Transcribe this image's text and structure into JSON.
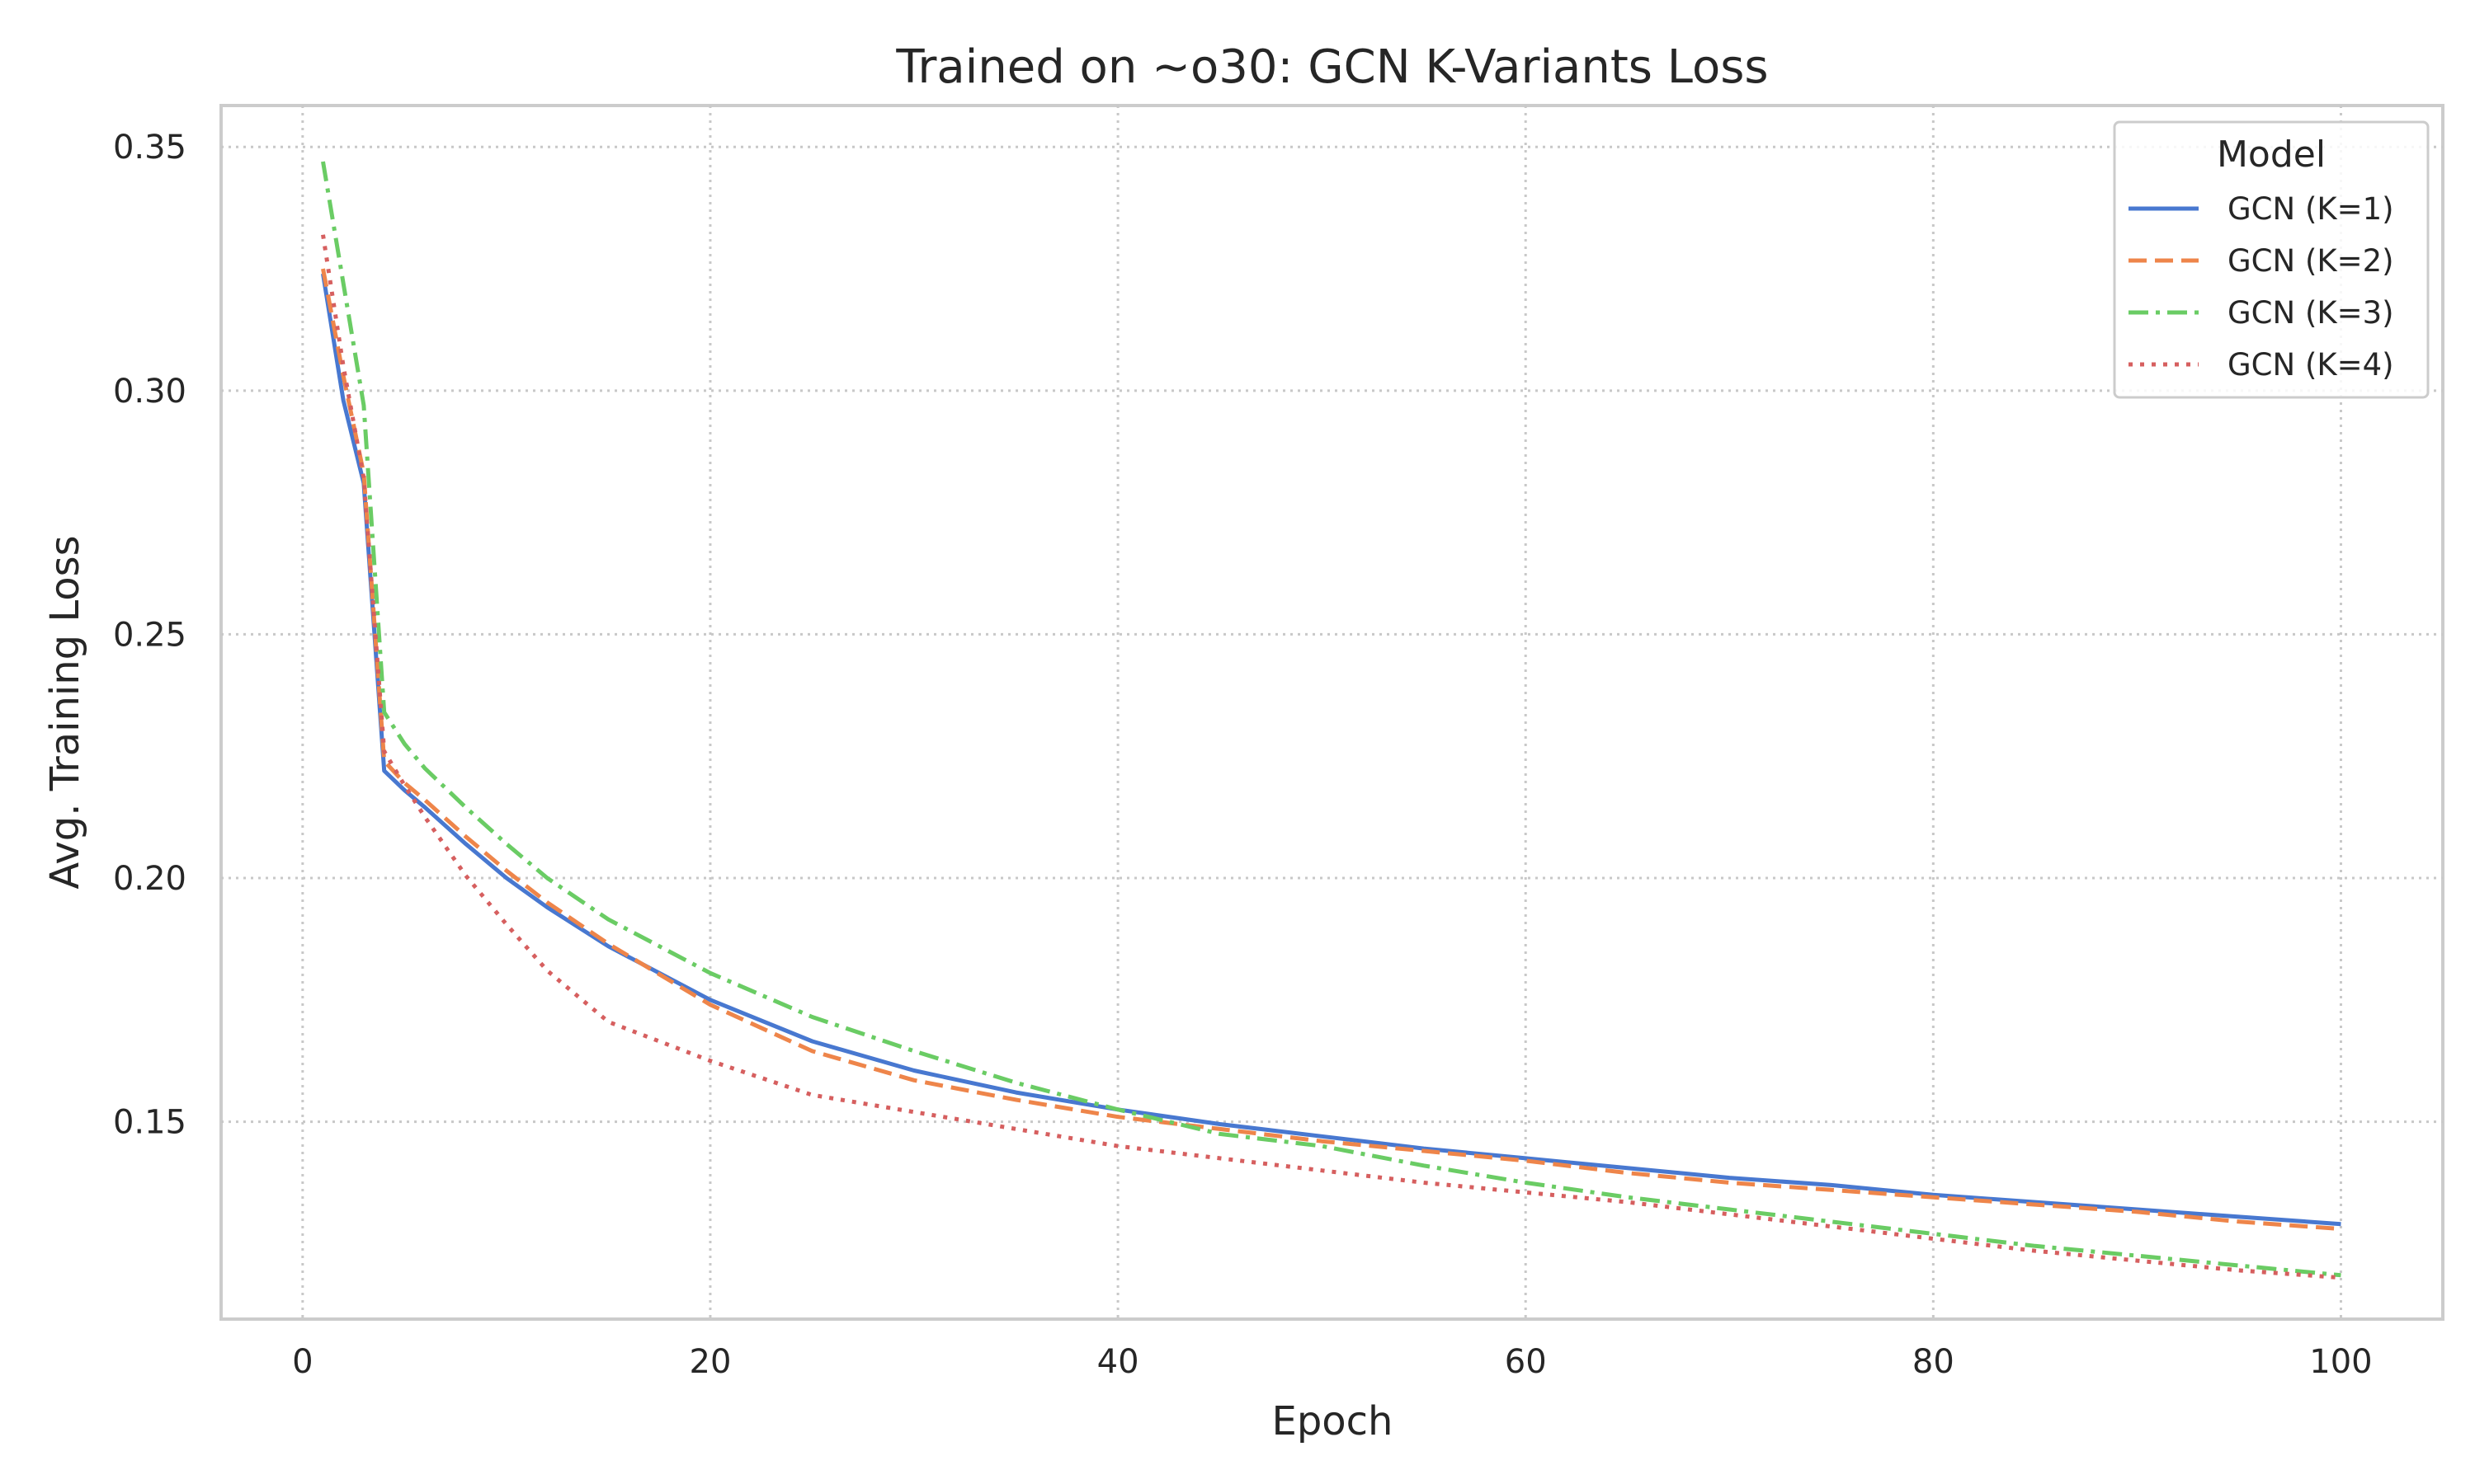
{
  "chart_data": {
    "type": "line",
    "title": "Trained on ~o30: GCN K-Variants Loss",
    "xlabel": "Epoch",
    "ylabel": "Avg. Training Loss",
    "xlim": [
      -4,
      105
    ],
    "ylim": [
      0.1095,
      0.3585
    ],
    "xticks": [
      0,
      20,
      40,
      60,
      80,
      100
    ],
    "xtick_labels": [
      "0",
      "20",
      "40",
      "60",
      "80",
      "100"
    ],
    "yticks": [
      0.15,
      0.2,
      0.25,
      0.3,
      0.35
    ],
    "ytick_labels": [
      "0.15",
      "0.20",
      "0.25",
      "0.30",
      "0.35"
    ],
    "grid": true,
    "legend": {
      "title": "Model",
      "placement": "top-right"
    },
    "x": [
      1,
      2,
      3,
      4,
      5,
      6,
      8,
      10,
      12,
      15,
      20,
      25,
      30,
      35,
      40,
      45,
      50,
      55,
      60,
      65,
      70,
      75,
      80,
      85,
      90,
      95,
      100
    ],
    "series": [
      {
        "name": "GCN (K=1)",
        "color": "#4878d0",
        "dash": "solid",
        "values": [
          0.324,
          0.298,
          0.281,
          0.222,
          0.218,
          0.2145,
          0.207,
          0.2,
          0.194,
          0.186,
          0.175,
          0.1665,
          0.1605,
          0.156,
          0.1525,
          0.1495,
          0.147,
          0.1445,
          0.1425,
          0.1405,
          0.1385,
          0.137,
          0.135,
          0.1335,
          0.132,
          0.1305,
          0.129
        ]
      },
      {
        "name": "GCN (K=2)",
        "color": "#ee854a",
        "dash": "dashed",
        "values": [
          0.325,
          0.303,
          0.283,
          0.224,
          0.2195,
          0.216,
          0.2085,
          0.2015,
          0.195,
          0.1865,
          0.174,
          0.1645,
          0.1585,
          0.1545,
          0.151,
          0.1485,
          0.146,
          0.144,
          0.142,
          0.1395,
          0.1375,
          0.136,
          0.1345,
          0.133,
          0.1315,
          0.1295,
          0.128
        ]
      },
      {
        "name": "GCN (K=3)",
        "color": "#6acc64",
        "dash": "dashdot",
        "values": [
          0.347,
          0.322,
          0.297,
          0.234,
          0.2275,
          0.2225,
          0.2145,
          0.207,
          0.2,
          0.1915,
          0.1805,
          0.1715,
          0.1645,
          0.158,
          0.1525,
          0.1475,
          0.145,
          0.141,
          0.1375,
          0.1345,
          0.132,
          0.1295,
          0.127,
          0.1245,
          0.1225,
          0.1205,
          0.1185
        ]
      },
      {
        "name": "GCN (K=4)",
        "color": "#d65f5f",
        "dash": "dotted",
        "values": [
          0.332,
          0.305,
          0.282,
          0.226,
          0.219,
          0.2125,
          0.2005,
          0.1905,
          0.181,
          0.1705,
          0.1625,
          0.1555,
          0.152,
          0.1485,
          0.145,
          0.1425,
          0.14,
          0.1375,
          0.1355,
          0.1335,
          0.131,
          0.1285,
          0.126,
          0.1235,
          0.1215,
          0.1195,
          0.118
        ]
      }
    ]
  }
}
